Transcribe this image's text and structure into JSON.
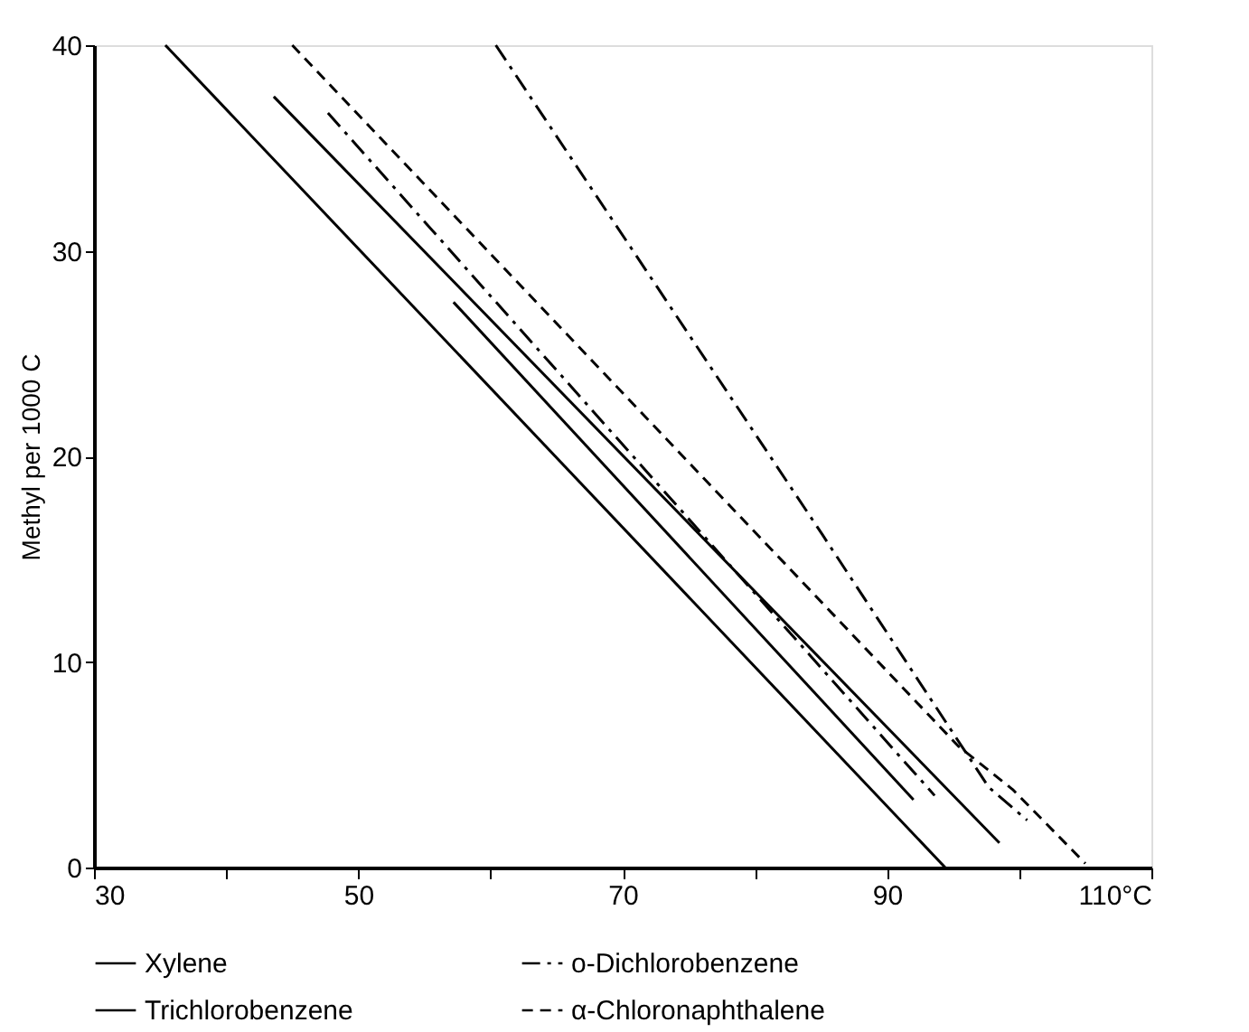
{
  "chart_data": {
    "type": "line",
    "ylabel": "Methyl per 1000 C",
    "xlim": [
      30,
      110
    ],
    "ylim": [
      0,
      40
    ],
    "xticks": [
      30,
      {
        "value": 40,
        "label": null
      },
      50,
      {
        "value": 60,
        "label": null
      },
      70,
      {
        "value": 80,
        "label": null
      },
      90,
      {
        "value": 100,
        "label": null
      },
      {
        "value": 110,
        "label": "110°C"
      }
    ],
    "yticks": [
      0,
      10,
      20,
      30,
      40
    ],
    "grid": false,
    "legend": "bottom",
    "marker": "none",
    "series": [
      {
        "name": "Xylene",
        "color": "#000000",
        "line_style": "solid",
        "x": [
          35.4,
          94.4
        ],
        "values": [
          40,
          0
        ]
      },
      {
        "name": "o-Dichlorobenzene",
        "color": "#000000",
        "line_style": "dashdot",
        "x": [
          47.7,
          93.6
        ],
        "values": [
          36.7,
          3.5
        ]
      },
      {
        "name": "Trichlorobenzene",
        "color": "#000000",
        "line_style": "solid",
        "x": [
          43.6,
          98.5
        ],
        "values": [
          37.5,
          1.2
        ]
      },
      {
        "name": "α-Chloronaphthalene",
        "color": "#000000",
        "line_style": "dashed",
        "x": [
          45,
          95.4,
          99.5,
          105
        ],
        "values": [
          40,
          5.9,
          3.8,
          0.2
        ]
      },
      {
        "color": "#000000",
        "line_style": "solid",
        "x": [
          57.2,
          92.0
        ],
        "values": [
          27.5,
          3.3
        ]
      },
      {
        "color": "#000000",
        "line_style": "dashdot",
        "x": [
          60.4,
          85.1,
          97.7,
          100.6
        ],
        "values": [
          40,
          16.2,
          3.9,
          2.3
        ]
      }
    ]
  }
}
